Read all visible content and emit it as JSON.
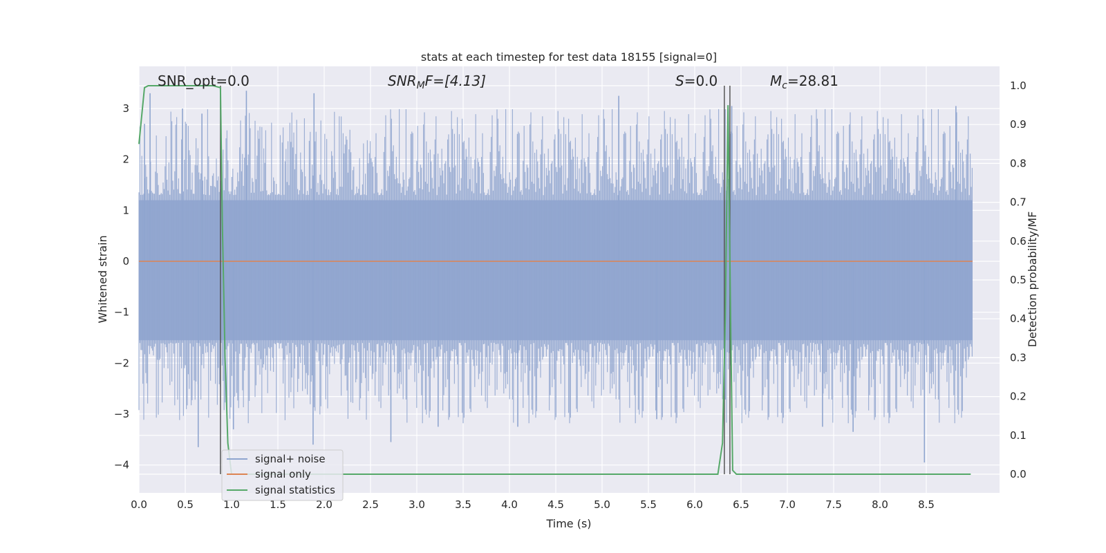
{
  "chart_data": {
    "type": "line",
    "title": "stats at each timestep for test data 18155 [signal=0]",
    "xlabel": "Time (s)",
    "ylabel_left": "Whitened strain",
    "ylabel_right": "Detection probability/MF",
    "xlim": [
      0.0,
      9.0
    ],
    "ylim_left": [
      -4.35,
      3.75
    ],
    "ylim_right": [
      -0.05,
      1.05
    ],
    "xticks": [
      "0.0",
      "0.5",
      "1.0",
      "1.5",
      "2.0",
      "2.5",
      "3.0",
      "3.5",
      "4.0",
      "4.5",
      "5.0",
      "5.5",
      "6.0",
      "6.5",
      "7.0",
      "7.5",
      "8.0",
      "8.5"
    ],
    "yticks_left": [
      "3",
      "2",
      "1",
      "0",
      "−1",
      "−2",
      "−3",
      "−4"
    ],
    "yticks_right": [
      "1.0",
      "0.9",
      "0.8",
      "0.7",
      "0.6",
      "0.5",
      "0.4",
      "0.3",
      "0.2",
      "0.1",
      "0.0"
    ],
    "grid": true,
    "legend_position": "lower-left",
    "annotations": {
      "snr_opt": "SNR_opt=0.0",
      "snr_mf_main": "SNR",
      "snr_mf_sub": "M",
      "snr_mf_rest": "F=[4.13]",
      "s_main": "S",
      "s_rest": "=0.0",
      "mc_main": "M",
      "mc_sub": "c",
      "mc_rest": "=28.81"
    },
    "vertical_lines_x": [
      0.88,
      6.32,
      6.38
    ],
    "series": [
      {
        "name": "signal+ noise",
        "axis": "left",
        "color": "#8fa5cf",
        "description_range": [
          -3.9,
          3.3
        ],
        "spikes": [
          {
            "x": 0.06,
            "y": 2.7
          },
          {
            "x": 0.12,
            "y": 3.3
          },
          {
            "x": 0.47,
            "y": 3.0
          },
          {
            "x": 0.64,
            "y": -3.65
          },
          {
            "x": 0.68,
            "y": 2.9
          },
          {
            "x": 1.02,
            "y": -3.3
          },
          {
            "x": 1.16,
            "y": 3.35
          },
          {
            "x": 1.88,
            "y": -3.6
          },
          {
            "x": 1.89,
            "y": 3.3
          },
          {
            "x": 2.72,
            "y": -3.55
          },
          {
            "x": 3.23,
            "y": -3.25
          },
          {
            "x": 4.09,
            "y": -3.25
          },
          {
            "x": 5.18,
            "y": 3.25
          },
          {
            "x": 5.59,
            "y": -3.1
          },
          {
            "x": 6.4,
            "y": 3.05
          },
          {
            "x": 7.38,
            "y": -3.25
          },
          {
            "x": 7.71,
            "y": -3.35
          },
          {
            "x": 8.48,
            "y": -3.95
          },
          {
            "x": 8.82,
            "y": 3.05
          }
        ]
      },
      {
        "name": "signal only",
        "axis": "left",
        "color": "#dd8452",
        "values_x": [
          0.0,
          9.0
        ],
        "values_y": [
          0.0,
          0.0
        ]
      },
      {
        "name": "signal statistics",
        "axis": "right",
        "color": "#55a868",
        "values_x": [
          0.0,
          0.06,
          0.1,
          0.2,
          0.4,
          0.6,
          0.8,
          0.88,
          0.9,
          0.93,
          0.96,
          1.0,
          1.02,
          2.0,
          3.0,
          4.0,
          5.0,
          5.8,
          6.25,
          6.3,
          6.33,
          6.36,
          6.39,
          6.41,
          6.45,
          6.5,
          7.0,
          8.0,
          8.98
        ],
        "values_y": [
          0.85,
          0.995,
          1.0,
          1.0,
          1.0,
          1.0,
          1.0,
          0.995,
          0.65,
          0.3,
          0.08,
          0.0,
          0.0,
          0.0,
          0.0,
          0.0,
          0.0,
          0.0,
          0.0,
          0.08,
          0.4,
          0.95,
          0.35,
          0.01,
          0.0,
          0.0,
          0.0,
          0.0,
          0.0
        ]
      }
    ]
  }
}
